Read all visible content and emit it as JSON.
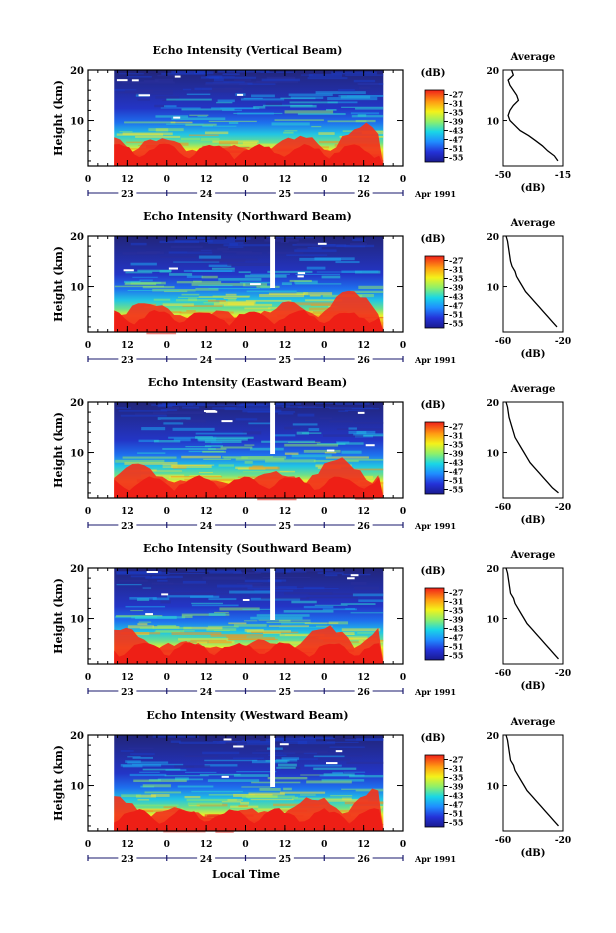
{
  "figure": {
    "date_label": "Apr 1991",
    "xlabel_bottom": "Local Time"
  },
  "chart_data": [
    {
      "type": "heatmap",
      "title": "Echo Intensity (Vertical Beam)",
      "beam": "vertical",
      "ylabel": "Height (km)",
      "yticks": [
        10,
        20
      ],
      "ylim": [
        1,
        20
      ],
      "xticks_hours": [
        "0",
        "12",
        "0",
        "12",
        "0",
        "12",
        "0",
        "12",
        "0"
      ],
      "day_labels": [
        "23",
        "24",
        "25",
        "26"
      ],
      "xlim_hours": [
        0,
        96
      ],
      "data_extent_hours": [
        8,
        90
      ],
      "colorbar": {
        "unit": "(dB)",
        "ticks": [
          "-27",
          "-31",
          "-35",
          "-39",
          "-43",
          "-47",
          "-51",
          "-55"
        ],
        "range": [
          -57,
          -25
        ]
      },
      "profile": {
        "title": "Average",
        "xlabel": "(dB)",
        "xticks": [
          "-50",
          "-15"
        ],
        "xlim": [
          -50,
          -15
        ],
        "ylim": [
          1,
          20
        ],
        "points": [
          [
            -45,
            20
          ],
          [
            -44,
            19
          ],
          [
            -47,
            18
          ],
          [
            -46,
            17
          ],
          [
            -44,
            16
          ],
          [
            -42,
            15
          ],
          [
            -41,
            14
          ],
          [
            -44,
            13
          ],
          [
            -46,
            12
          ],
          [
            -47,
            11
          ],
          [
            -46,
            10
          ],
          [
            -43,
            9
          ],
          [
            -40,
            8
          ],
          [
            -35,
            7
          ],
          [
            -31,
            6
          ],
          [
            -27,
            5
          ],
          [
            -24,
            4
          ],
          [
            -20,
            3
          ],
          [
            -18,
            2
          ]
        ]
      },
      "gaps_hours": []
    },
    {
      "type": "heatmap",
      "title": "Echo Intensity (Northward Beam)",
      "beam": "northward",
      "ylabel": "Height (km)",
      "yticks": [
        10,
        20
      ],
      "ylim": [
        1,
        20
      ],
      "xticks_hours": [
        "0",
        "12",
        "0",
        "12",
        "0",
        "12",
        "0",
        "12",
        "0"
      ],
      "day_labels": [
        "23",
        "24",
        "25",
        "26"
      ],
      "xlim_hours": [
        0,
        96
      ],
      "data_extent_hours": [
        8,
        90
      ],
      "colorbar": {
        "unit": "(dB)",
        "ticks": [
          "-27",
          "-31",
          "-35",
          "-39",
          "-43",
          "-47",
          "-51",
          "-55"
        ],
        "range": [
          -57,
          -25
        ]
      },
      "profile": {
        "title": "Average",
        "xlabel": "(dB)",
        "xticks": [
          "-60",
          "-20"
        ],
        "xlim": [
          -60,
          -20
        ],
        "ylim": [
          1,
          20
        ],
        "points": [
          [
            -58,
            20
          ],
          [
            -57,
            19
          ],
          [
            -56,
            17
          ],
          [
            -55,
            15
          ],
          [
            -54,
            14
          ],
          [
            -52,
            13
          ],
          [
            -51,
            12
          ],
          [
            -49,
            11
          ],
          [
            -47,
            10
          ],
          [
            -45,
            9
          ],
          [
            -42,
            8
          ],
          [
            -39,
            7
          ],
          [
            -36,
            6
          ],
          [
            -33,
            5
          ],
          [
            -30,
            4
          ],
          [
            -27,
            3
          ],
          [
            -24,
            2
          ]
        ]
      },
      "gaps_hours": [
        [
          55.5,
          57
        ]
      ]
    },
    {
      "type": "heatmap",
      "title": "Echo Intensity (Eastward Beam)",
      "beam": "eastward",
      "ylabel": "Height (km)",
      "yticks": [
        10,
        20
      ],
      "ylim": [
        1,
        20
      ],
      "xticks_hours": [
        "0",
        "12",
        "0",
        "12",
        "0",
        "12",
        "0",
        "12",
        "0"
      ],
      "day_labels": [
        "23",
        "24",
        "25",
        "26"
      ],
      "xlim_hours": [
        0,
        96
      ],
      "data_extent_hours": [
        8,
        90
      ],
      "colorbar": {
        "unit": "(dB)",
        "ticks": [
          "-27",
          "-31",
          "-35",
          "-39",
          "-43",
          "-47",
          "-51",
          "-55"
        ],
        "range": [
          -57,
          -25
        ]
      },
      "profile": {
        "title": "Average",
        "xlabel": "(dB)",
        "xticks": [
          "-60",
          "-20"
        ],
        "xlim": [
          -60,
          -20
        ],
        "ylim": [
          1,
          20
        ],
        "points": [
          [
            -58,
            20
          ],
          [
            -57,
            19
          ],
          [
            -56,
            17
          ],
          [
            -54,
            15
          ],
          [
            -53,
            14
          ],
          [
            -52,
            13
          ],
          [
            -50,
            12
          ],
          [
            -48,
            11
          ],
          [
            -46,
            10
          ],
          [
            -44,
            9
          ],
          [
            -42,
            8
          ],
          [
            -39,
            7
          ],
          [
            -36,
            6
          ],
          [
            -33,
            5
          ],
          [
            -30,
            4
          ],
          [
            -27,
            3
          ],
          [
            -23,
            2
          ]
        ]
      },
      "gaps_hours": [
        [
          55.5,
          57
        ]
      ]
    },
    {
      "type": "heatmap",
      "title": "Echo Intensity (Southward Beam)",
      "beam": "southward",
      "ylabel": "Height (km)",
      "yticks": [
        10,
        20
      ],
      "ylim": [
        1,
        20
      ],
      "xticks_hours": [
        "0",
        "12",
        "0",
        "12",
        "0",
        "12",
        "0",
        "12",
        "0"
      ],
      "day_labels": [
        "23",
        "24",
        "25",
        "26"
      ],
      "xlim_hours": [
        0,
        96
      ],
      "data_extent_hours": [
        8,
        90
      ],
      "colorbar": {
        "unit": "(dB)",
        "ticks": [
          "-27",
          "-31",
          "-35",
          "-39",
          "-43",
          "-47",
          "-51",
          "-55"
        ],
        "range": [
          -57,
          -25
        ]
      },
      "profile": {
        "title": "Average",
        "xlabel": "(dB)",
        "xticks": [
          "-60",
          "-20"
        ],
        "xlim": [
          -60,
          -20
        ],
        "ylim": [
          1,
          20
        ],
        "points": [
          [
            -58,
            20
          ],
          [
            -57,
            19
          ],
          [
            -56,
            17
          ],
          [
            -55,
            15
          ],
          [
            -53,
            14
          ],
          [
            -52,
            13
          ],
          [
            -50,
            12
          ],
          [
            -48,
            11
          ],
          [
            -46,
            10
          ],
          [
            -44,
            9
          ],
          [
            -41,
            8
          ],
          [
            -38,
            7
          ],
          [
            -35,
            6
          ],
          [
            -32,
            5
          ],
          [
            -29,
            4
          ],
          [
            -26,
            3
          ],
          [
            -23,
            2
          ]
        ]
      },
      "gaps_hours": [
        [
          55.5,
          57
        ]
      ]
    },
    {
      "type": "heatmap",
      "title": "Echo Intensity (Westward Beam)",
      "beam": "westward",
      "ylabel": "Height (km)",
      "yticks": [
        10,
        20
      ],
      "ylim": [
        1,
        20
      ],
      "xticks_hours": [
        "0",
        "12",
        "0",
        "12",
        "0",
        "12",
        "0",
        "12",
        "0"
      ],
      "day_labels": [
        "23",
        "24",
        "25",
        "26"
      ],
      "xlim_hours": [
        0,
        96
      ],
      "data_extent_hours": [
        8,
        90
      ],
      "colorbar": {
        "unit": "(dB)",
        "ticks": [
          "-27",
          "-31",
          "-35",
          "-39",
          "-43",
          "-47",
          "-51",
          "-55"
        ],
        "range": [
          -57,
          -25
        ]
      },
      "profile": {
        "title": "Average",
        "xlabel": "(dB)",
        "xticks": [
          "-60",
          "-20"
        ],
        "xlim": [
          -60,
          -20
        ],
        "ylim": [
          1,
          20
        ],
        "points": [
          [
            -58,
            20
          ],
          [
            -57,
            19
          ],
          [
            -56,
            17
          ],
          [
            -55,
            15
          ],
          [
            -53,
            14
          ],
          [
            -52,
            13
          ],
          [
            -50,
            12
          ],
          [
            -48,
            11
          ],
          [
            -46,
            10
          ],
          [
            -44,
            9
          ],
          [
            -41,
            8
          ],
          [
            -38,
            7
          ],
          [
            -35,
            6
          ],
          [
            -32,
            5
          ],
          [
            -29,
            4
          ],
          [
            -26,
            3
          ],
          [
            -23,
            2
          ]
        ]
      },
      "gaps_hours": [
        [
          55.5,
          57
        ]
      ]
    }
  ]
}
